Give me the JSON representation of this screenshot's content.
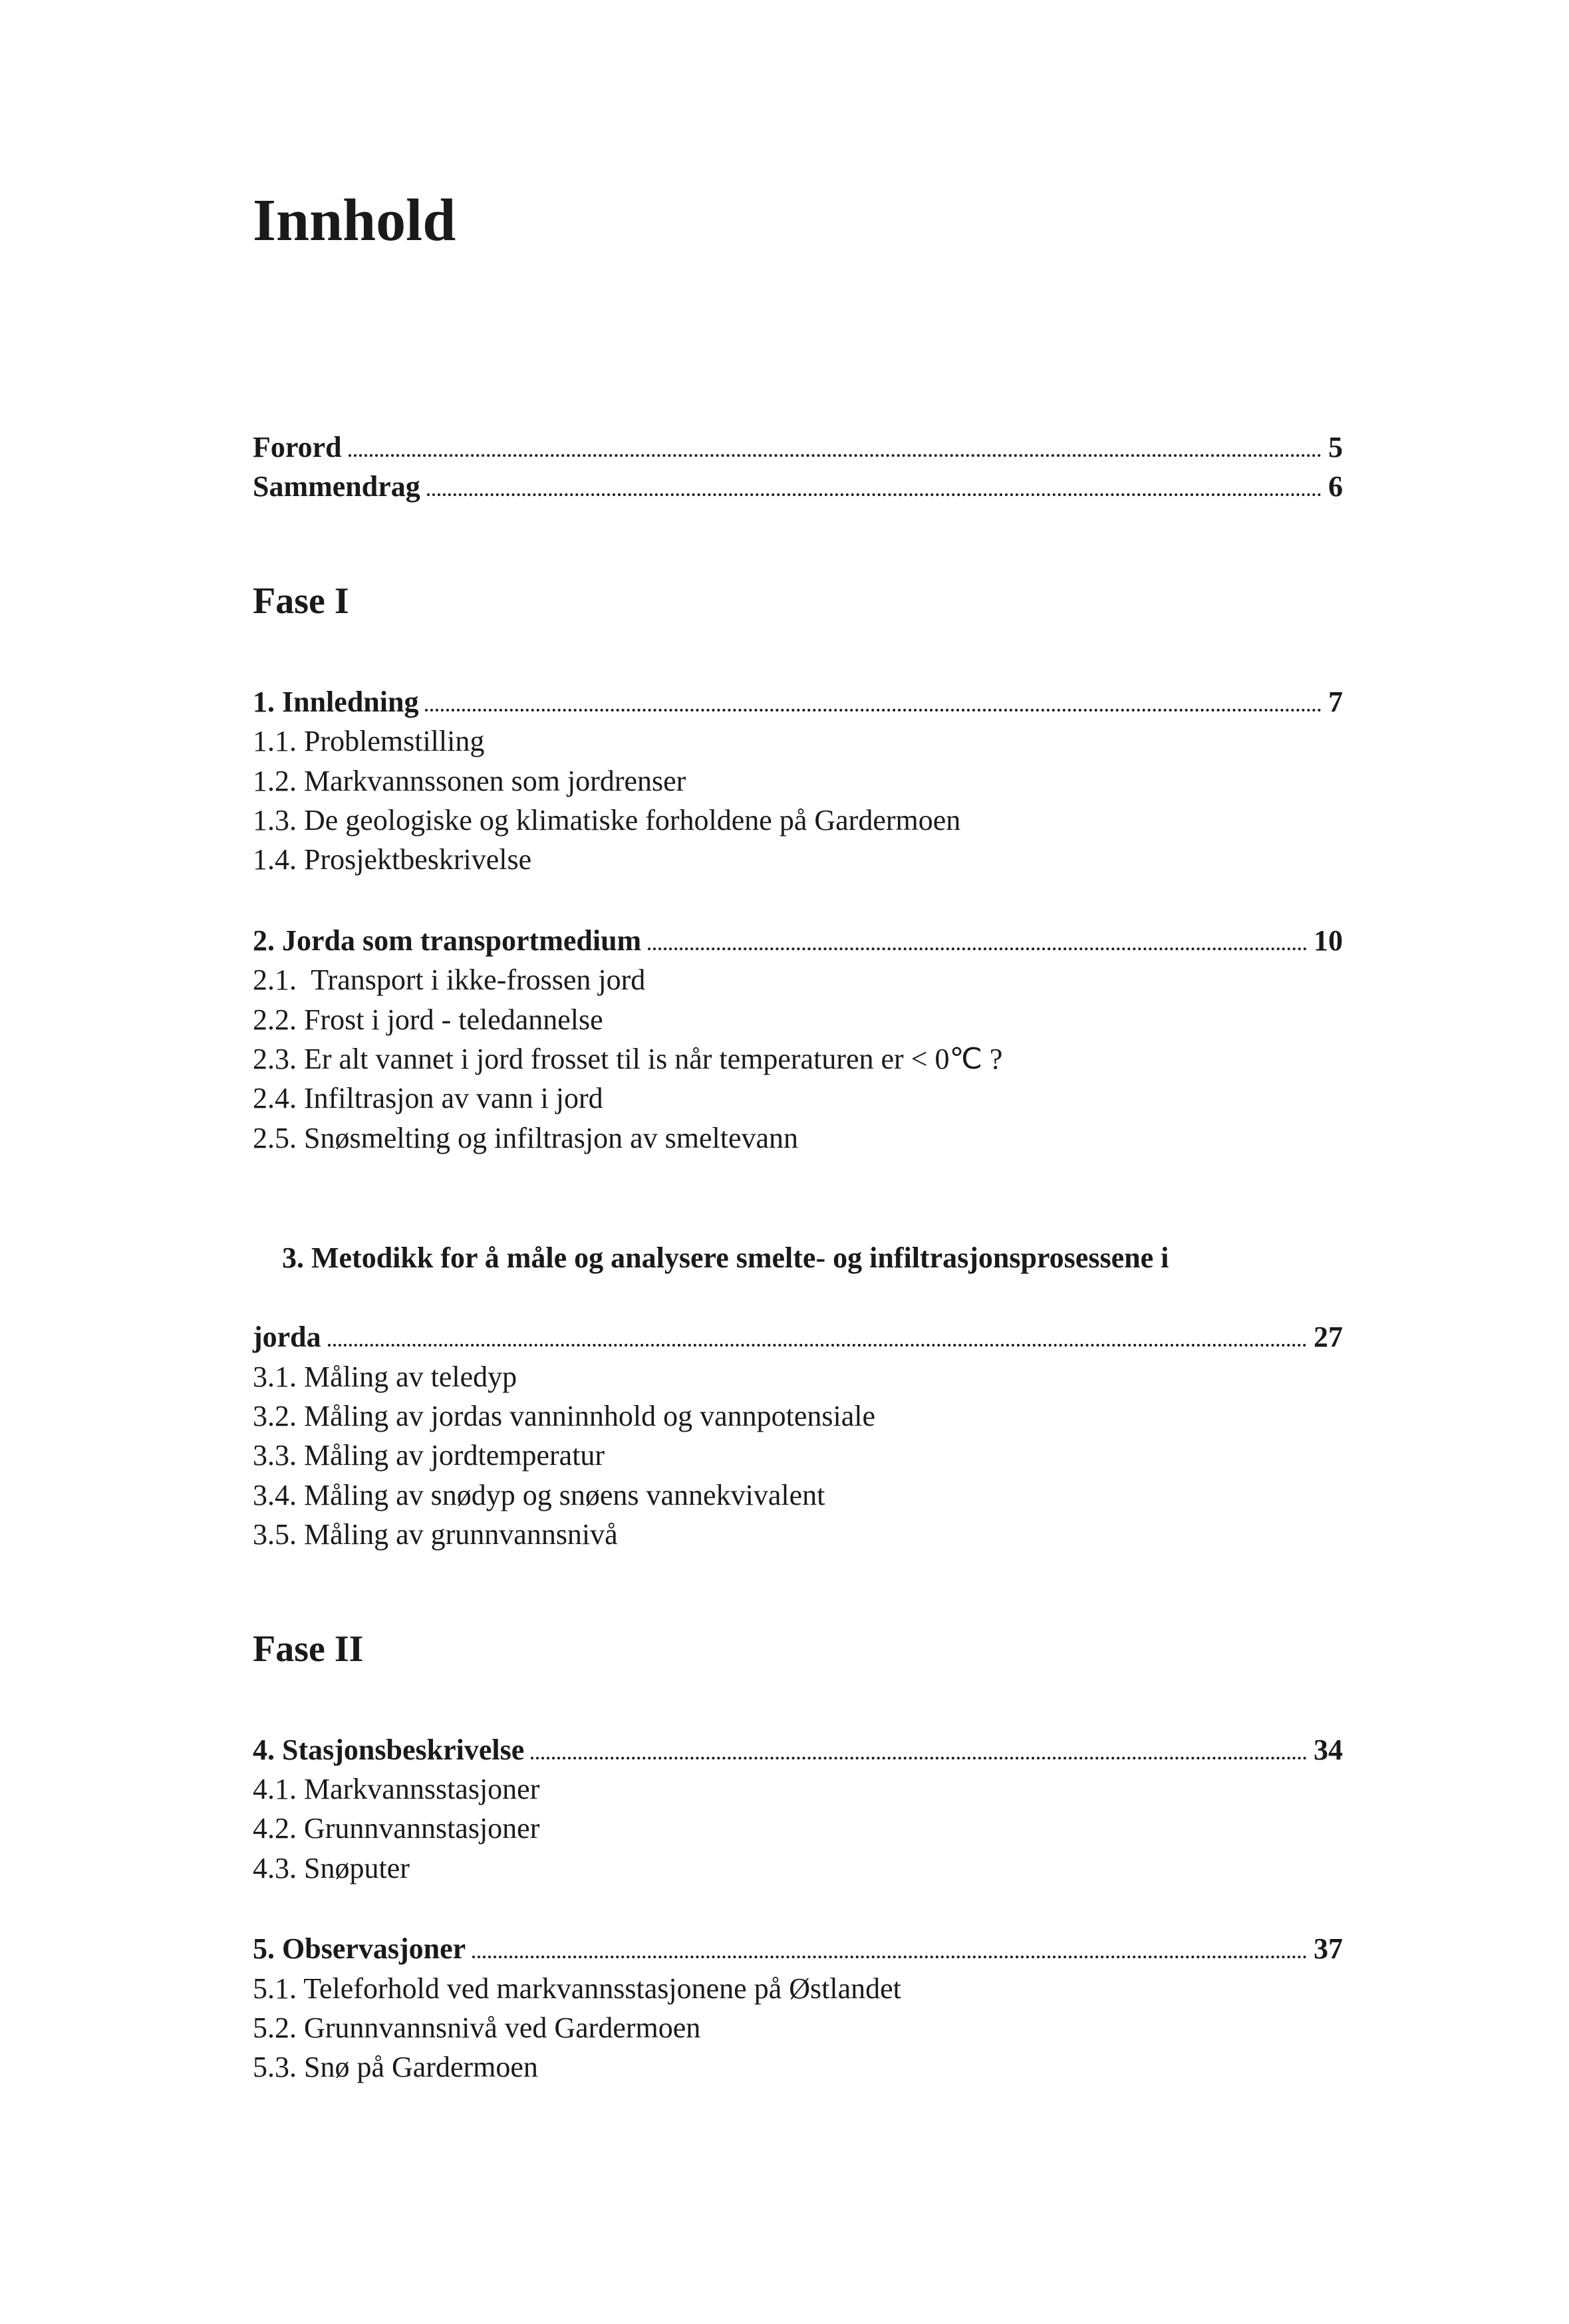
{
  "title": "Innhold",
  "front": [
    {
      "label": "Forord",
      "page": "5"
    },
    {
      "label": "Sammendrag",
      "page": "6"
    }
  ],
  "phases": [
    {
      "heading": "Fase I",
      "sections": [
        {
          "head": {
            "label": "1. Innledning",
            "page": "7"
          },
          "items": [
            "1.1. Problemstilling",
            "1.2. Markvannssonen som jordrenser",
            "1.3. De geologiske og klimatiske forholdene på Gardermoen",
            "1.4. Prosjektbeskrivelse"
          ]
        },
        {
          "head": {
            "label": "2. Jorda som transportmedium",
            "page": "10"
          },
          "items": [
            "2.1.  Transport i ikke-frossen jord",
            "2.2. Frost i jord - teledannelse",
            "2.3. Er alt vannet i jord frosset til is når temperaturen er < 0℃ ?",
            "2.4. Infiltrasjon av vann i jord",
            "2.5. Snøsmelting og infiltrasjon av smeltevann"
          ]
        },
        {
          "head": {
            "label": "3. Metodikk for å måle og analysere smelte- og infiltrasjonsprosessene i jorda",
            "page": "27"
          },
          "items": [
            "3.1. Måling av teledyp",
            "3.2. Måling av jordas vanninnhold og vannpotensiale",
            "3.3. Måling av jordtemperatur",
            "3.4. Måling av snødyp og snøens vannekvivalent",
            "3.5. Måling av grunnvannsnivå"
          ]
        }
      ]
    },
    {
      "heading": "Fase II",
      "sections": [
        {
          "head": {
            "label": "4. Stasjonsbeskrivelse",
            "page": "34"
          },
          "items": [
            "4.1. Markvannsstasjoner",
            "4.2. Grunnvannstasjoner",
            "4.3. Snøputer"
          ]
        },
        {
          "head": {
            "label": "5. Observasjoner",
            "page": "37"
          },
          "items": [
            "5.1. Teleforhold ved markvannsstasjonene på Østlandet",
            "5.2. Grunnvannsnivå ved Gardermoen",
            "5.3. Snø på Gardermoen"
          ]
        }
      ]
    }
  ]
}
